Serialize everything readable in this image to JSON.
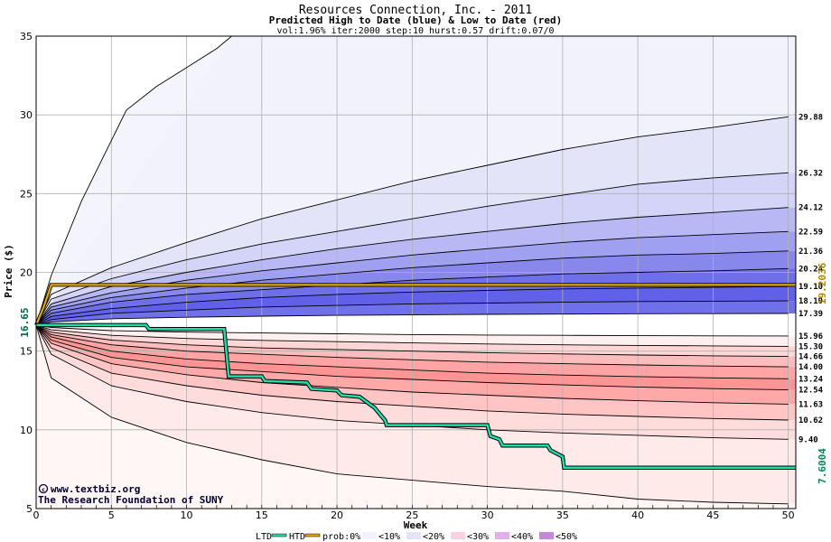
{
  "chart_data": {
    "type": "area",
    "title": "Resources Connection, Inc. - 2011",
    "subtitle": "Predicted High to Date (blue) &  Low to Date (red)",
    "params": "vol:1.96% iter:2000 step:10 hurst:0.57 drift:0.07/0",
    "xlabel": "Week",
    "ylabel": "Price ($)",
    "xlim": [
      0,
      50.5
    ],
    "ylim": [
      5,
      35
    ],
    "xticks": [
      0,
      5,
      10,
      15,
      20,
      25,
      30,
      35,
      40,
      45,
      50
    ],
    "yticks": [
      5,
      10,
      15,
      20,
      25,
      30,
      35
    ],
    "start_price": 16.65,
    "start_price_label": "16.65",
    "ref_line": {
      "value": 19.2036,
      "label": "19.2036",
      "color": "#c8a000"
    },
    "end_ltd_label": "7.6004",
    "end_ltd_color": "#008855",
    "high_quantile_labels": [
      "29.88",
      "26.32",
      "24.12",
      "22.59",
      "21.36",
      "20.24",
      "19.10",
      "18.19",
      "17.39"
    ],
    "low_quantile_labels": [
      "15.96",
      "15.30",
      "14.66",
      "14.00",
      "13.24",
      "12.54",
      "11.63",
      "10.62",
      "9.40"
    ],
    "high_curves": [
      {
        "end": 35.0,
        "label": "",
        "points": [
          [
            0,
            16.65
          ],
          [
            1,
            19.8
          ],
          [
            3,
            24.5
          ],
          [
            6,
            30.3
          ],
          [
            8,
            31.8
          ],
          [
            10,
            33.0
          ],
          [
            12,
            34.2
          ],
          [
            13,
            35.0
          ]
        ]
      },
      {
        "end": 29.88,
        "label": "29.88",
        "points": [
          [
            0,
            16.65
          ],
          [
            1,
            18.6
          ],
          [
            5,
            20.3
          ],
          [
            10,
            21.9
          ],
          [
            15,
            23.4
          ],
          [
            20,
            24.6
          ],
          [
            25,
            25.8
          ],
          [
            30,
            26.8
          ],
          [
            35,
            27.8
          ],
          [
            40,
            28.6
          ],
          [
            45,
            29.2
          ],
          [
            50,
            29.88
          ]
        ]
      },
      {
        "end": 26.32,
        "label": "26.32",
        "points": [
          [
            0,
            16.65
          ],
          [
            1,
            18.3
          ],
          [
            5,
            19.6
          ],
          [
            10,
            20.8
          ],
          [
            15,
            21.8
          ],
          [
            20,
            22.6
          ],
          [
            25,
            23.4
          ],
          [
            30,
            24.2
          ],
          [
            35,
            24.9
          ],
          [
            40,
            25.6
          ],
          [
            45,
            26.0
          ],
          [
            50,
            26.32
          ]
        ]
      },
      {
        "end": 24.12,
        "label": "24.12",
        "points": [
          [
            0,
            16.65
          ],
          [
            1,
            18.0
          ],
          [
            5,
            19.1
          ],
          [
            10,
            20.0
          ],
          [
            15,
            20.8
          ],
          [
            20,
            21.5
          ],
          [
            25,
            22.1
          ],
          [
            30,
            22.6
          ],
          [
            35,
            23.1
          ],
          [
            40,
            23.5
          ],
          [
            45,
            23.8
          ],
          [
            50,
            24.12
          ]
        ]
      },
      {
        "end": 22.59,
        "label": "22.59",
        "points": [
          [
            0,
            16.65
          ],
          [
            1,
            17.8
          ],
          [
            5,
            18.7
          ],
          [
            10,
            19.5
          ],
          [
            15,
            20.1
          ],
          [
            20,
            20.6
          ],
          [
            25,
            21.1
          ],
          [
            30,
            21.5
          ],
          [
            35,
            21.9
          ],
          [
            40,
            22.2
          ],
          [
            45,
            22.4
          ],
          [
            50,
            22.59
          ]
        ]
      },
      {
        "end": 21.36,
        "label": "21.36",
        "points": [
          [
            0,
            16.65
          ],
          [
            1,
            17.6
          ],
          [
            5,
            18.4
          ],
          [
            10,
            19.0
          ],
          [
            15,
            19.5
          ],
          [
            20,
            19.9
          ],
          [
            25,
            20.3
          ],
          [
            30,
            20.6
          ],
          [
            35,
            20.9
          ],
          [
            40,
            21.1
          ],
          [
            45,
            21.2
          ],
          [
            50,
            21.36
          ]
        ]
      },
      {
        "end": 20.24,
        "label": "20.24",
        "points": [
          [
            0,
            16.65
          ],
          [
            1,
            17.4
          ],
          [
            5,
            18.1
          ],
          [
            10,
            18.6
          ],
          [
            15,
            18.9
          ],
          [
            20,
            19.2
          ],
          [
            25,
            19.5
          ],
          [
            30,
            19.7
          ],
          [
            35,
            19.9
          ],
          [
            40,
            20.0
          ],
          [
            45,
            20.1
          ],
          [
            50,
            20.24
          ]
        ]
      },
      {
        "end": 19.1,
        "label": "19.10",
        "points": [
          [
            0,
            16.65
          ],
          [
            1,
            17.2
          ],
          [
            5,
            17.7
          ],
          [
            10,
            18.1
          ],
          [
            15,
            18.4
          ],
          [
            20,
            18.6
          ],
          [
            25,
            18.75
          ],
          [
            30,
            18.85
          ],
          [
            35,
            18.95
          ],
          [
            40,
            19.0
          ],
          [
            45,
            19.05
          ],
          [
            50,
            19.1
          ]
        ]
      },
      {
        "end": 18.19,
        "label": "18.19",
        "points": [
          [
            0,
            16.65
          ],
          [
            1,
            17.0
          ],
          [
            5,
            17.4
          ],
          [
            10,
            17.6
          ],
          [
            15,
            17.8
          ],
          [
            20,
            17.9
          ],
          [
            25,
            18.0
          ],
          [
            30,
            18.05
          ],
          [
            35,
            18.1
          ],
          [
            40,
            18.15
          ],
          [
            45,
            18.17
          ],
          [
            50,
            18.19
          ]
        ]
      },
      {
        "end": 17.39,
        "label": "17.39",
        "points": [
          [
            0,
            16.65
          ],
          [
            1,
            16.85
          ],
          [
            5,
            17.05
          ],
          [
            10,
            17.15
          ],
          [
            15,
            17.22
          ],
          [
            20,
            17.27
          ],
          [
            25,
            17.3
          ],
          [
            30,
            17.33
          ],
          [
            35,
            17.35
          ],
          [
            40,
            17.37
          ],
          [
            45,
            17.38
          ],
          [
            50,
            17.39
          ]
        ]
      }
    ],
    "low_curves": [
      {
        "end": 15.96,
        "label": "15.96",
        "points": [
          [
            0,
            16.65
          ],
          [
            1,
            16.5
          ],
          [
            5,
            16.3
          ],
          [
            10,
            16.2
          ],
          [
            15,
            16.15
          ],
          [
            20,
            16.1
          ],
          [
            25,
            16.05
          ],
          [
            30,
            16.02
          ],
          [
            35,
            16.0
          ],
          [
            40,
            15.98
          ],
          [
            45,
            15.97
          ],
          [
            50,
            15.96
          ]
        ]
      },
      {
        "end": 15.3,
        "label": "15.30",
        "points": [
          [
            0,
            16.65
          ],
          [
            1,
            16.35
          ],
          [
            5,
            16.0
          ],
          [
            10,
            15.8
          ],
          [
            15,
            15.68
          ],
          [
            20,
            15.6
          ],
          [
            25,
            15.52
          ],
          [
            30,
            15.45
          ],
          [
            35,
            15.4
          ],
          [
            40,
            15.36
          ],
          [
            45,
            15.33
          ],
          [
            50,
            15.3
          ]
        ]
      },
      {
        "end": 14.66,
        "label": "14.66",
        "points": [
          [
            0,
            16.65
          ],
          [
            1,
            16.2
          ],
          [
            5,
            15.7
          ],
          [
            10,
            15.4
          ],
          [
            15,
            15.2
          ],
          [
            20,
            15.1
          ],
          [
            25,
            15.0
          ],
          [
            30,
            14.9
          ],
          [
            35,
            14.82
          ],
          [
            40,
            14.75
          ],
          [
            45,
            14.7
          ],
          [
            50,
            14.66
          ]
        ]
      },
      {
        "end": 14.0,
        "label": "14.00",
        "points": [
          [
            0,
            16.65
          ],
          [
            1,
            16.05
          ],
          [
            5,
            15.4
          ],
          [
            10,
            15.0
          ],
          [
            15,
            14.8
          ],
          [
            20,
            14.6
          ],
          [
            25,
            14.45
          ],
          [
            30,
            14.3
          ],
          [
            35,
            14.2
          ],
          [
            40,
            14.12
          ],
          [
            45,
            14.05
          ],
          [
            50,
            14.0
          ]
        ]
      },
      {
        "end": 13.24,
        "label": "13.24",
        "points": [
          [
            0,
            16.65
          ],
          [
            1,
            15.9
          ],
          [
            5,
            15.0
          ],
          [
            10,
            14.5
          ],
          [
            15,
            14.2
          ],
          [
            20,
            14.0
          ],
          [
            25,
            13.8
          ],
          [
            30,
            13.6
          ],
          [
            35,
            13.48
          ],
          [
            40,
            13.38
          ],
          [
            45,
            13.3
          ],
          [
            50,
            13.24
          ]
        ]
      },
      {
        "end": 12.54,
        "label": "12.54",
        "points": [
          [
            0,
            16.65
          ],
          [
            1,
            15.7
          ],
          [
            5,
            14.6
          ],
          [
            10,
            14.0
          ],
          [
            15,
            13.7
          ],
          [
            20,
            13.4
          ],
          [
            25,
            13.2
          ],
          [
            30,
            13.0
          ],
          [
            35,
            12.85
          ],
          [
            40,
            12.72
          ],
          [
            45,
            12.62
          ],
          [
            50,
            12.54
          ]
        ]
      },
      {
        "end": 11.63,
        "label": "11.63",
        "points": [
          [
            0,
            16.65
          ],
          [
            1,
            15.5
          ],
          [
            5,
            14.2
          ],
          [
            10,
            13.5
          ],
          [
            15,
            13.0
          ],
          [
            20,
            12.7
          ],
          [
            25,
            12.4
          ],
          [
            30,
            12.2
          ],
          [
            35,
            12.0
          ],
          [
            40,
            11.85
          ],
          [
            45,
            11.72
          ],
          [
            50,
            11.63
          ]
        ]
      },
      {
        "end": 10.62,
        "label": "10.62",
        "points": [
          [
            0,
            16.65
          ],
          [
            1,
            15.2
          ],
          [
            5,
            13.6
          ],
          [
            10,
            12.8
          ],
          [
            15,
            12.2
          ],
          [
            20,
            11.8
          ],
          [
            25,
            11.5
          ],
          [
            30,
            11.2
          ],
          [
            35,
            11.0
          ],
          [
            40,
            10.85
          ],
          [
            45,
            10.72
          ],
          [
            50,
            10.62
          ]
        ]
      },
      {
        "end": 9.4,
        "label": "9.40",
        "points": [
          [
            0,
            16.65
          ],
          [
            1,
            14.8
          ],
          [
            5,
            12.8
          ],
          [
            10,
            11.8
          ],
          [
            15,
            11.1
          ],
          [
            20,
            10.6
          ],
          [
            25,
            10.3
          ],
          [
            30,
            10.0
          ],
          [
            35,
            9.8
          ],
          [
            40,
            9.65
          ],
          [
            45,
            9.5
          ],
          [
            50,
            9.4
          ]
        ]
      },
      {
        "end": 5.3,
        "label": "",
        "points": [
          [
            0,
            16.65
          ],
          [
            1,
            13.3
          ],
          [
            5,
            10.8
          ],
          [
            10,
            9.2
          ],
          [
            15,
            8.1
          ],
          [
            20,
            7.2
          ],
          [
            25,
            6.8
          ],
          [
            30,
            6.4
          ],
          [
            35,
            6.1
          ],
          [
            40,
            5.6
          ],
          [
            45,
            5.4
          ],
          [
            50,
            5.3
          ]
        ]
      }
    ],
    "htd": {
      "name": "HTD",
      "color": "#e8a800",
      "points": [
        [
          0,
          16.65
        ],
        [
          0.5,
          17.8
        ],
        [
          1,
          19.2036
        ],
        [
          50.5,
          19.2036
        ]
      ]
    },
    "ltd": {
      "name": "LTD",
      "color": "#22ddaa",
      "points": [
        [
          0,
          16.65
        ],
        [
          7.3,
          16.65
        ],
        [
          7.5,
          16.4
        ],
        [
          12.5,
          16.4
        ],
        [
          12.8,
          13.4
        ],
        [
          15,
          13.4
        ],
        [
          15.2,
          13.1
        ],
        [
          18,
          13.0
        ],
        [
          18.3,
          12.6
        ],
        [
          20,
          12.5
        ],
        [
          20.3,
          12.2
        ],
        [
          21.5,
          12.1
        ],
        [
          22.5,
          11.4
        ],
        [
          23.2,
          10.6
        ],
        [
          23.3,
          10.3
        ],
        [
          30,
          10.3
        ],
        [
          30.2,
          9.6
        ],
        [
          30.8,
          9.4
        ],
        [
          31,
          9.0
        ],
        [
          34,
          9.0
        ],
        [
          34.2,
          8.7
        ],
        [
          35,
          8.3
        ],
        [
          35.1,
          7.6004
        ],
        [
          50.5,
          7.6004
        ]
      ]
    },
    "legend": {
      "ltd": "LTD",
      "htd": "HTD",
      "prob": "prob:0%",
      "b10": "<10%",
      "b20": "<20%",
      "b30": "<30%",
      "b40": "<40%",
      "b50": "<50%"
    },
    "credits": {
      "line1": "www.textbiz.org",
      "line2": "The Research Foundation of SUNY"
    },
    "colors": {
      "blue_bands": [
        "#f2f2fc",
        "#e4e4f8",
        "#d4d4f8",
        "#b8b8f4",
        "#a0a0f0",
        "#8888ec",
        "#6f6fea",
        "#6060e8",
        "#7070ea"
      ],
      "red_bands": [
        "#ffeeee",
        "#ffd8d8",
        "#ffc4c4",
        "#ffb0b0",
        "#ff9c9c",
        "#ff9090",
        "#ffb4b4",
        "#ffd0d0",
        "#ffe4e4",
        "#fff2f2"
      ]
    }
  }
}
